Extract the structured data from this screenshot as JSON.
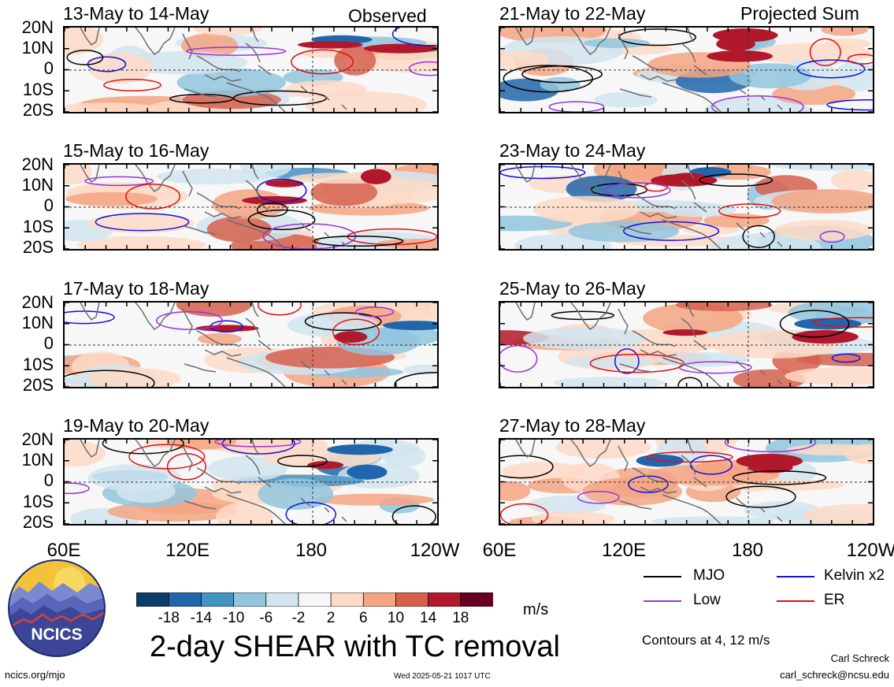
{
  "header": {
    "left_label": "Observed",
    "right_label": "Projected Sum"
  },
  "left_panels": [
    {
      "title": "13-May to 14-May"
    },
    {
      "title": "15-May to 16-May"
    },
    {
      "title": "17-May to 18-May"
    },
    {
      "title": "19-May to 20-May"
    }
  ],
  "right_panels": [
    {
      "title": "21-May to 22-May"
    },
    {
      "title": "23-May to 24-May"
    },
    {
      "title": "25-May to 26-May"
    },
    {
      "title": "27-May to 28-May"
    }
  ],
  "y_ticks": [
    "20N",
    "10N",
    "0",
    "10S",
    "20S"
  ],
  "x_ticks": [
    "60E",
    "120E",
    "180",
    "120W"
  ],
  "colorbar": {
    "levels": [
      "-18",
      "-14",
      "-10",
      "-6",
      "-2",
      "2",
      "6",
      "10",
      "14",
      "18"
    ],
    "colors": [
      "#0b3d6b",
      "#2166ac",
      "#4393c3",
      "#92c5de",
      "#d1e5f0",
      "#f7f7f7",
      "#fddbc7",
      "#f4a582",
      "#d6604d",
      "#b2182b",
      "#67001f"
    ],
    "units": "m/s"
  },
  "title": "2-day SHEAR with TC removal",
  "legend": {
    "items": [
      {
        "label": "MJO",
        "color": "#000000"
      },
      {
        "label": "Kelvin x2",
        "color": "#1010e0"
      },
      {
        "label": "Low",
        "color": "#9933dd"
      },
      {
        "label": "ER",
        "color": "#e01010"
      }
    ],
    "contour_note": "Contours at 4, 12 m/s"
  },
  "footer": {
    "logo_text": "NCICS",
    "url": "ncics.org/mjo",
    "timestamp": "Wed 2025-05-21 1017 UTC",
    "author": "Carl Schreck",
    "email": "carl_schreck@ncsu.edu"
  }
}
